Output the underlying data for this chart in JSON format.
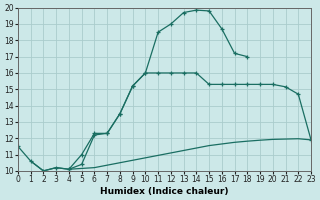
{
  "xlabel": "Humidex (Indice chaleur)",
  "background_color": "#cce8e8",
  "grid_color": "#aacccc",
  "line_color": "#1a6e62",
  "xlim": [
    0,
    23
  ],
  "ylim": [
    10,
    20
  ],
  "xticks": [
    0,
    1,
    2,
    3,
    4,
    5,
    6,
    7,
    8,
    9,
    10,
    11,
    12,
    13,
    14,
    15,
    16,
    17,
    18,
    19,
    20,
    21,
    22,
    23
  ],
  "yticks": [
    10,
    11,
    12,
    13,
    14,
    15,
    16,
    17,
    18,
    19,
    20
  ],
  "line1_x": [
    0,
    1,
    2,
    3,
    4,
    5,
    6,
    7,
    8,
    9,
    10,
    11,
    12,
    13,
    14,
    15,
    16,
    17,
    18
  ],
  "line1_y": [
    11.5,
    10.6,
    10.0,
    10.2,
    10.1,
    11.0,
    12.3,
    12.3,
    13.5,
    15.2,
    16.0,
    18.5,
    19.0,
    19.7,
    19.85,
    19.8,
    18.7,
    17.2,
    17.0
  ],
  "line2_x": [
    4,
    5,
    6,
    7,
    8,
    9,
    10,
    11,
    12,
    13,
    14,
    15,
    16,
    17,
    18,
    19,
    20,
    21,
    22,
    23
  ],
  "line2_y": [
    10.1,
    10.4,
    12.2,
    12.3,
    13.5,
    15.2,
    16.0,
    16.0,
    16.0,
    16.0,
    16.0,
    15.3,
    15.3,
    15.3,
    15.3,
    15.3,
    15.3,
    15.15,
    14.7,
    11.9
  ],
  "line3_x": [
    1,
    2,
    3,
    4,
    5,
    6,
    7,
    8,
    9,
    10,
    11,
    12,
    13,
    14,
    15,
    16,
    17,
    18,
    19,
    20,
    21,
    22,
    23
  ],
  "line3_y": [
    10.6,
    10.0,
    10.2,
    10.1,
    10.15,
    10.2,
    10.35,
    10.5,
    10.65,
    10.8,
    10.95,
    11.1,
    11.25,
    11.4,
    11.55,
    11.65,
    11.75,
    11.82,
    11.88,
    11.93,
    11.95,
    11.97,
    11.9
  ]
}
